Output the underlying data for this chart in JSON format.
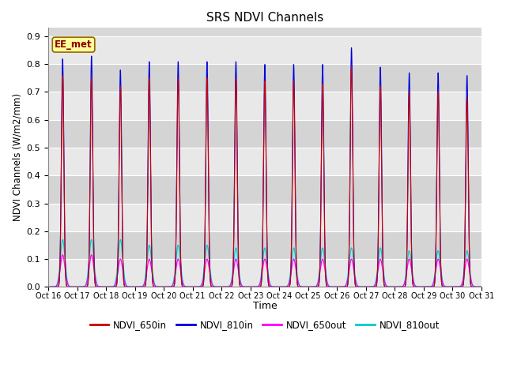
{
  "title": "SRS NDVI Channels",
  "ylabel": "NDVI Channels (W/m2/mm)",
  "xlabel": "Time",
  "annotation": "EE_met",
  "ylim": [
    0.0,
    0.93
  ],
  "yticks": [
    0.0,
    0.1,
    0.2,
    0.3,
    0.4,
    0.5,
    0.6,
    0.7,
    0.8,
    0.9
  ],
  "bg_color": "#d8d8d8",
  "band_color_light": "#e8e8e8",
  "band_color_dark": "#d0d0d0",
  "legend": [
    {
      "label": "NDVI_650in",
      "color": "#cc0000"
    },
    {
      "label": "NDVI_810in",
      "color": "#0000dd"
    },
    {
      "label": "NDVI_650out",
      "color": "#ff00ff"
    },
    {
      "label": "NDVI_810out",
      "color": "#00cccc"
    }
  ],
  "xtick_labels": [
    "Oct 16",
    "Oct 17",
    "Oct 18",
    "Oct 19",
    "Oct 20",
    "Oct 21",
    "Oct 22",
    "Oct 23",
    "Oct 24",
    "Oct 25",
    "Oct 26",
    "Oct 27",
    "Oct 28",
    "Oct 29",
    "Oct 30",
    "Oct 31"
  ],
  "n_days": 15,
  "samples_per_day": 200,
  "peak_810in": [
    0.82,
    0.83,
    0.78,
    0.81,
    0.81,
    0.81,
    0.81,
    0.8,
    0.8,
    0.8,
    0.86,
    0.79,
    0.77,
    0.77,
    0.76
  ],
  "peak_650in": [
    0.76,
    0.75,
    0.72,
    0.75,
    0.75,
    0.75,
    0.75,
    0.74,
    0.74,
    0.73,
    0.79,
    0.72,
    0.7,
    0.7,
    0.68
  ],
  "peak_810out": [
    0.17,
    0.17,
    0.17,
    0.15,
    0.15,
    0.15,
    0.14,
    0.14,
    0.14,
    0.14,
    0.14,
    0.14,
    0.13,
    0.13,
    0.13
  ],
  "peak_650out": [
    0.115,
    0.115,
    0.1,
    0.1,
    0.1,
    0.1,
    0.1,
    0.1,
    0.1,
    0.1,
    0.1,
    0.1,
    0.1,
    0.1,
    0.1
  ],
  "figsize": [
    6.4,
    4.8
  ],
  "dpi": 100
}
